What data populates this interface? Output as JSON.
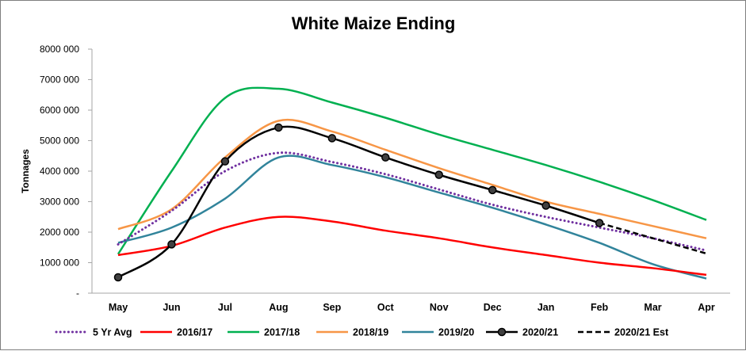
{
  "chart_data": {
    "type": "line",
    "title": "White Maize Ending",
    "xlabel": "",
    "ylabel": "Tonnages",
    "categories": [
      "May",
      "Jun",
      "Jul",
      "Aug",
      "Sep",
      "Oct",
      "Nov",
      "Dec",
      "Jan",
      "Feb",
      "Mar",
      "Apr"
    ],
    "y_ticks": [
      0,
      1000000,
      2000000,
      3000000,
      4000000,
      5000000,
      6000000,
      7000000,
      8000000
    ],
    "y_tick_labels": [
      "-",
      "1000 000",
      "2000 000",
      "3000 000",
      "4000 000",
      "5000 000",
      "6000 000",
      "7000 000",
      "8000 000"
    ],
    "ylim": [
      0,
      8000000
    ],
    "grid": false,
    "legend_position": "bottom",
    "series": [
      {
        "name": "5 Yr Avg",
        "color": "#7030a0",
        "style": "dotted",
        "values": [
          1600000,
          2700000,
          4000000,
          4600000,
          4300000,
          3900000,
          3400000,
          2900000,
          2500000,
          2150000,
          1800000,
          1400000
        ]
      },
      {
        "name": "2016/17",
        "color": "#ff0000",
        "style": "solid",
        "values": [
          1250000,
          1550000,
          2150000,
          2500000,
          2350000,
          2050000,
          1800000,
          1500000,
          1250000,
          1000000,
          820000,
          600000
        ]
      },
      {
        "name": "2017/18",
        "color": "#00b050",
        "style": "solid",
        "values": [
          1280000,
          4000000,
          6400000,
          6700000,
          6250000,
          5750000,
          5200000,
          4700000,
          4200000,
          3650000,
          3050000,
          2400000
        ]
      },
      {
        "name": "2018/19",
        "color": "#f79646",
        "style": "solid",
        "values": [
          2100000,
          2750000,
          4450000,
          5650000,
          5300000,
          4700000,
          4100000,
          3550000,
          3000000,
          2600000,
          2200000,
          1800000
        ]
      },
      {
        "name": "2019/20",
        "color": "#31849b",
        "style": "solid",
        "values": [
          1650000,
          2150000,
          3100000,
          4450000,
          4200000,
          3800000,
          3300000,
          2800000,
          2250000,
          1650000,
          950000,
          480000
        ]
      },
      {
        "name": "2020/21",
        "color": "#000000",
        "style": "solid-markers",
        "values": [
          520000,
          1600000,
          4320000,
          5430000,
          5080000,
          4450000,
          3880000,
          3380000,
          2870000,
          2300000,
          null,
          null
        ]
      },
      {
        "name": "2020/21 Est",
        "color": "#000000",
        "style": "dashed",
        "values": [
          null,
          null,
          null,
          null,
          null,
          null,
          null,
          null,
          null,
          2300000,
          1800000,
          1300000
        ]
      }
    ]
  }
}
